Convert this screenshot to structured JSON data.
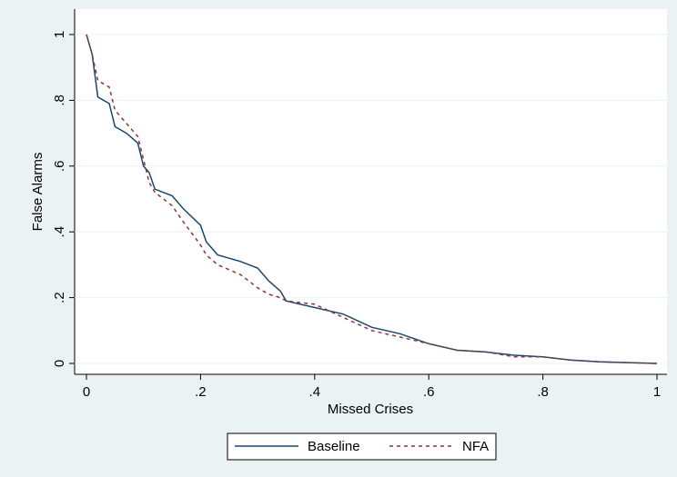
{
  "chart_data": {
    "type": "line",
    "xlabel": "Missed Crises",
    "ylabel": "False Alarms",
    "x": [
      0,
      0.01,
      0.02,
      0.04,
      0.05,
      0.07,
      0.09,
      0.1,
      0.11,
      0.12,
      0.15,
      0.17,
      0.2,
      0.21,
      0.23,
      0.27,
      0.3,
      0.32,
      0.34,
      0.35,
      0.4,
      0.45,
      0.5,
      0.55,
      0.6,
      0.65,
      0.7,
      0.75,
      0.8,
      0.85,
      0.9,
      1
    ],
    "series": [
      {
        "name": "Baseline",
        "color": "#1a476f",
        "dash": false,
        "values": [
          1,
          0.94,
          0.81,
          0.79,
          0.72,
          0.7,
          0.67,
          0.6,
          0.58,
          0.53,
          0.51,
          0.47,
          0.42,
          0.37,
          0.33,
          0.31,
          0.29,
          0.25,
          0.22,
          0.19,
          0.17,
          0.15,
          0.11,
          0.09,
          0.06,
          0.04,
          0.035,
          0.025,
          0.02,
          0.01,
          0.005,
          0
        ]
      },
      {
        "name": "NFA",
        "color": "#90353b",
        "dash": true,
        "values": [
          1,
          0.94,
          0.86,
          0.84,
          0.77,
          0.73,
          0.69,
          0.62,
          0.55,
          0.52,
          0.48,
          0.43,
          0.36,
          0.33,
          0.3,
          0.27,
          0.23,
          0.21,
          0.2,
          0.19,
          0.18,
          0.14,
          0.1,
          0.08,
          0.06,
          0.04,
          0.035,
          0.02,
          0.02,
          0.01,
          0.005,
          0
        ]
      }
    ],
    "xlim": [
      0,
      1
    ],
    "xticks": [
      0,
      {
        "value": 0.2,
        "label": ".2"
      },
      {
        "value": 0.4,
        "label": ".4"
      },
      {
        "value": 0.6,
        "label": ".6"
      },
      {
        "value": 0.8,
        "label": ".8"
      },
      1
    ],
    "ylim": [
      0,
      1
    ],
    "yticks": [
      0,
      {
        "value": 0.2,
        "label": ".2"
      },
      {
        "value": 0.4,
        "label": ".4"
      },
      {
        "value": 0.6,
        "label": ".6"
      },
      {
        "value": 0.8,
        "label": ".8"
      },
      1
    ],
    "grid": true,
    "legend": "bottom"
  }
}
